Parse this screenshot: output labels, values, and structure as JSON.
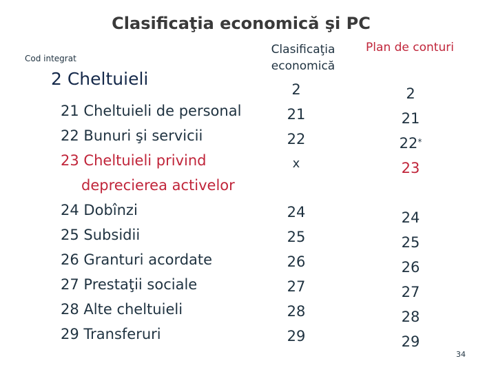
{
  "title": "Clasificaţia economică şi PC",
  "cod_integrat_label": "Cod integrat",
  "col_clasificatia_line1": "Clasificaţia",
  "col_clasificatia_line2": "economică",
  "col_plan_label": "Plan de conturi",
  "category": "2 Cheltuieli",
  "items": [
    {
      "num": "21",
      "text": "Cheltuieli de personal"
    },
    {
      "num": "22",
      "text": "Bunuri şi servicii"
    },
    {
      "num": "23",
      "text": "Cheltuieli privind"
    },
    {
      "num": "",
      "text": "deprecierea activelor"
    },
    {
      "num": "24",
      "text": "Dobînzi"
    },
    {
      "num": "25",
      "text": "Subsidii"
    },
    {
      "num": "26",
      "text": "Granturi acordate"
    },
    {
      "num": "27",
      "text": "Prestaţii sociale"
    },
    {
      "num": "28",
      "text": "Alte cheltuieli"
    },
    {
      "num": "29",
      "text": "Transferuri"
    }
  ],
  "economic_codes_top": [
    "2",
    "21",
    "22",
    "x"
  ],
  "economic_codes_bottom": [
    "24",
    "25",
    "26",
    "27",
    "28",
    "29"
  ],
  "plan_codes_top": [
    "2",
    "21",
    "22",
    "23"
  ],
  "plan_star": "*",
  "plan_codes_bottom": [
    "24",
    "25",
    "26",
    "27",
    "28",
    "29"
  ],
  "page_number": "34",
  "colors": {
    "accent_red": "#c0253a",
    "text_dark": "#1f3240"
  }
}
